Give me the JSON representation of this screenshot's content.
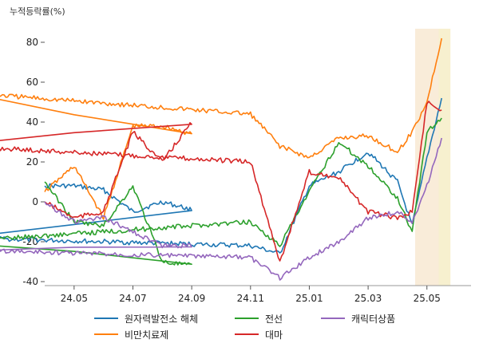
{
  "chart_data": {
    "type": "line",
    "unit_label": "누적등락률(%)",
    "xlabel": "",
    "ylabel": "",
    "ylim": [
      -42,
      90
    ],
    "yticks": [
      -40,
      -20,
      0,
      20,
      40,
      60,
      80
    ],
    "xticks": [
      "24.05",
      "24.07",
      "24.09",
      "24.11",
      "25.01",
      "25.03",
      "25.05"
    ],
    "grid": false,
    "legend_position": "bottom",
    "highlight_regions": [
      {
        "from": "25.046",
        "to": "25.054",
        "color": "#f9ecd9"
      },
      {
        "from": "25.054",
        "to": "25.058",
        "color": "#f7f0cf"
      }
    ],
    "series": [
      {
        "name": "원자력발전소 해체",
        "color": "#1f77b4",
        "points": [
          [
            24.04,
            8
          ],
          [
            24.05,
            8
          ],
          [
            24.06,
            6
          ],
          [
            24.07,
            -5
          ],
          [
            24.08,
            0
          ],
          [
            24.09,
            -4
          ],
          [
            24.1,
            -18
          ],
          [
            24.11,
            -22
          ],
          [
            24.12,
            -26
          ],
          [
            25.01,
            8
          ],
          [
            25.02,
            15
          ],
          [
            25.03,
            25
          ],
          [
            25.04,
            10
          ],
          [
            25.045,
            -12
          ],
          [
            25.05,
            22
          ],
          [
            25.055,
            52
          ]
        ]
      },
      {
        "name": "비만치료제",
        "color": "#ff7f0e",
        "points": [
          [
            24.04,
            5
          ],
          [
            24.05,
            18
          ],
          [
            24.06,
            -8
          ],
          [
            24.07,
            38
          ],
          [
            24.08,
            38
          ],
          [
            24.09,
            34
          ],
          [
            24.1,
            55
          ],
          [
            24.11,
            44
          ],
          [
            24.12,
            28
          ],
          [
            25.01,
            22
          ],
          [
            25.02,
            32
          ],
          [
            25.03,
            33
          ],
          [
            25.04,
            25
          ],
          [
            25.045,
            35
          ],
          [
            25.05,
            50
          ],
          [
            25.055,
            82
          ]
        ]
      },
      {
        "name": "전선",
        "color": "#2ca02c",
        "points": [
          [
            24.04,
            10
          ],
          [
            24.05,
            -10
          ],
          [
            24.06,
            -12
          ],
          [
            24.07,
            8
          ],
          [
            24.08,
            -30
          ],
          [
            24.09,
            -32
          ],
          [
            24.1,
            -20
          ],
          [
            24.11,
            -10
          ],
          [
            24.12,
            -22
          ],
          [
            25.01,
            5
          ],
          [
            25.02,
            30
          ],
          [
            25.03,
            18
          ],
          [
            25.04,
            2
          ],
          [
            25.045,
            -15
          ],
          [
            25.05,
            35
          ],
          [
            25.055,
            42
          ]
        ]
      },
      {
        "name": "대마",
        "color": "#d62728",
        "points": [
          [
            24.04,
            0
          ],
          [
            24.05,
            -8
          ],
          [
            24.06,
            -5
          ],
          [
            24.07,
            35
          ],
          [
            24.08,
            20
          ],
          [
            24.09,
            40
          ],
          [
            24.1,
            28
          ],
          [
            24.11,
            20
          ],
          [
            24.12,
            -30
          ],
          [
            25.01,
            15
          ],
          [
            25.02,
            12
          ],
          [
            25.03,
            -5
          ],
          [
            25.04,
            -8
          ],
          [
            25.045,
            -5
          ],
          [
            25.05,
            50
          ],
          [
            25.055,
            46
          ]
        ]
      },
      {
        "name": "캐릭터상품",
        "color": "#9467bd",
        "points": [
          [
            24.04,
            0
          ],
          [
            24.05,
            -10
          ],
          [
            24.06,
            -8
          ],
          [
            24.07,
            -15
          ],
          [
            24.08,
            -22
          ],
          [
            24.09,
            -22
          ],
          [
            24.1,
            -24
          ],
          [
            24.11,
            -28
          ],
          [
            24.12,
            -38
          ],
          [
            25.01,
            -28
          ],
          [
            25.02,
            -20
          ],
          [
            25.03,
            -8
          ],
          [
            25.04,
            -5
          ],
          [
            25.045,
            -10
          ],
          [
            25.05,
            8
          ],
          [
            25.055,
            32
          ]
        ]
      }
    ]
  }
}
